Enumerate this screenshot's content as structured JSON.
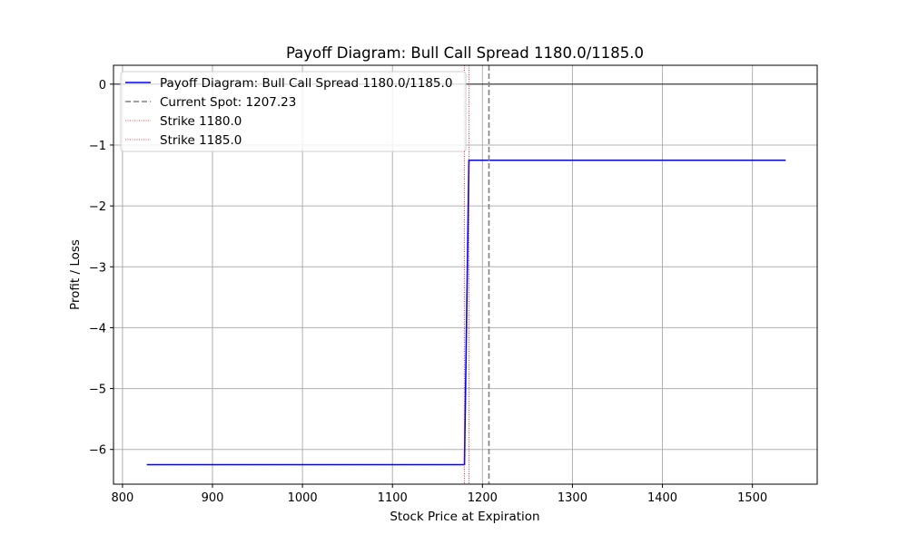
{
  "chart_data": {
    "type": "line",
    "title": "Payoff Diagram: Bull Call Spread 1180.0/1185.0",
    "xlabel": "Stock Price at Expiration",
    "ylabel": "Profit / Loss",
    "xlim": [
      790,
      1572
    ],
    "ylim": [
      -6.57,
      0.31
    ],
    "xticks": [
      800,
      900,
      1000,
      1100,
      1200,
      1300,
      1400,
      1500
    ],
    "yticks": [
      0,
      -1,
      -2,
      -3,
      -4,
      -5,
      -6
    ],
    "xtick_labels": [
      "800",
      "900",
      "1000",
      "1100",
      "1200",
      "1300",
      "1400",
      "1500"
    ],
    "ytick_labels": [
      "0",
      "−1",
      "−2",
      "−3",
      "−4",
      "−5",
      "−6"
    ],
    "grid": true,
    "legend_position": "upper-left",
    "series": [
      {
        "name": "Payoff Diagram: Bull Call Spread 1180.0/1185.0",
        "color": "#0000ff",
        "style": "solid",
        "x": [
          827,
          1180,
          1185,
          1537
        ],
        "y": [
          -6.25,
          -6.25,
          -1.25,
          -1.25
        ]
      }
    ],
    "zero_line": {
      "y": 0,
      "color": "#000000"
    },
    "vlines": [
      {
        "label": "Current Spot: 1207.23",
        "x": 1207.23,
        "color": "#808080",
        "style": "dashed"
      },
      {
        "label": "Strike 1180.0",
        "x": 1180.0,
        "color": "#ff0000",
        "style": "dotted"
      },
      {
        "label": "Strike 1185.0",
        "x": 1185.0,
        "color": "#ff0000",
        "style": "dotted"
      }
    ]
  }
}
